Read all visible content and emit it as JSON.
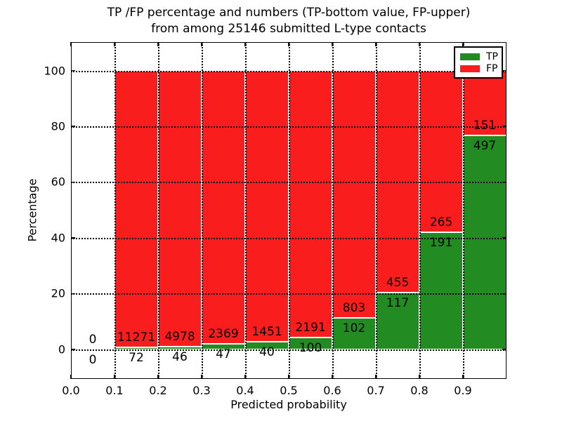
{
  "chart_data": {
    "type": "bar",
    "stacked": true,
    "title_lines": [
      "TP /FP percentage and numbers (TP-bottom value, FP-upper)",
      "from among 25146 submitted L-type contacts"
    ],
    "total_submitted": 25146,
    "xlabel": "Predicted probability",
    "ylabel": "Percentage",
    "xlim": [
      0,
      1
    ],
    "ylim": [
      -10.6,
      110.2
    ],
    "grid": true,
    "xticks": [
      {
        "value": 0.0,
        "label": "0.0"
      },
      {
        "value": 0.1,
        "label": "0.1"
      },
      {
        "value": 0.2,
        "label": "0.2"
      },
      {
        "value": 0.3,
        "label": "0.3"
      },
      {
        "value": 0.4,
        "label": "0.4"
      },
      {
        "value": 0.5,
        "label": "0.5"
      },
      {
        "value": 0.6,
        "label": "0.6"
      },
      {
        "value": 0.7,
        "label": "0.7"
      },
      {
        "value": 0.8,
        "label": "0.8"
      },
      {
        "value": 0.9,
        "label": "0.9"
      }
    ],
    "yticks": [
      {
        "value": 0,
        "label": "0"
      },
      {
        "value": 20,
        "label": "20"
      },
      {
        "value": 40,
        "label": "40"
      },
      {
        "value": 60,
        "label": "60"
      },
      {
        "value": 80,
        "label": "80"
      },
      {
        "value": 100,
        "label": "100"
      }
    ],
    "colors": {
      "tp": "#228B22",
      "fp": "#F91D1D"
    },
    "legend": {
      "position": "upper right",
      "entries": [
        {
          "label": "TP",
          "color": "#228B22"
        },
        {
          "label": "FP",
          "color": "#F91D1D"
        }
      ]
    },
    "bins": [
      {
        "range": [
          0.0,
          0.1
        ],
        "tp": 0,
        "fp": 0
      },
      {
        "range": [
          0.1,
          0.2
        ],
        "tp": 72,
        "fp": 11271
      },
      {
        "range": [
          0.2,
          0.3
        ],
        "tp": 46,
        "fp": 4978
      },
      {
        "range": [
          0.3,
          0.4
        ],
        "tp": 47,
        "fp": 2369
      },
      {
        "range": [
          0.4,
          0.5
        ],
        "tp": 40,
        "fp": 1451
      },
      {
        "range": [
          0.5,
          0.6
        ],
        "tp": 100,
        "fp": 2191
      },
      {
        "range": [
          0.6,
          0.7
        ],
        "tp": 102,
        "fp": 803
      },
      {
        "range": [
          0.7,
          0.8
        ],
        "tp": 117,
        "fp": 455
      },
      {
        "range": [
          0.8,
          0.9
        ],
        "tp": 191,
        "fp": 265
      },
      {
        "range": [
          0.9,
          1.0
        ],
        "tp": 497,
        "fp": 151
      }
    ]
  }
}
